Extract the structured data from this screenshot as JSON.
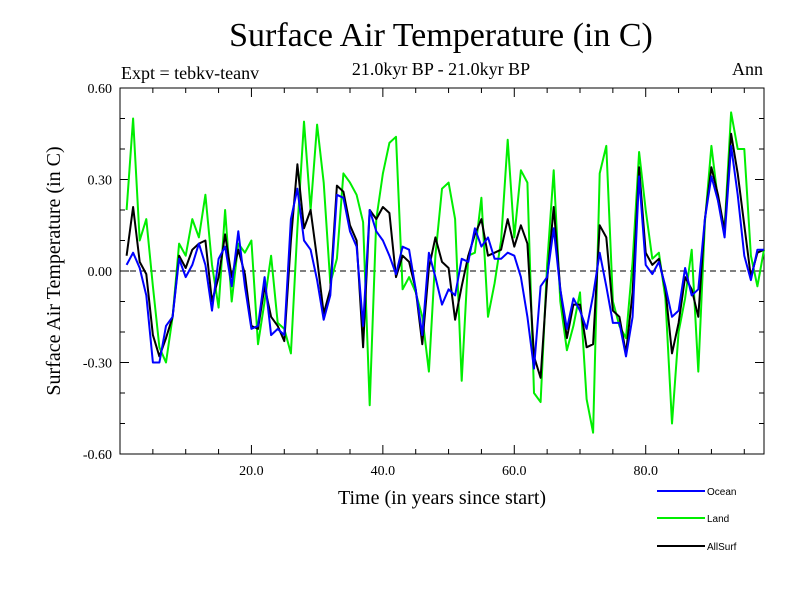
{
  "chart_data": {
    "type": "line",
    "title": "Surface Air Temperature (in C)",
    "subtitle": "21.0kyr BP - 21.0kyr BP",
    "left_label": "Expt = tebkv-teanv",
    "right_label": "Ann",
    "xlabel": "Time (in years since start)",
    "ylabel": "Surface Air Temperature (in C)",
    "xlim": [
      0,
      98
    ],
    "ylim": [
      -0.6,
      0.6
    ],
    "x_ticks": [
      20,
      40,
      60,
      80
    ],
    "x_tick_labels": [
      "20.0",
      "40.0",
      "60.0",
      "80.0"
    ],
    "y_ticks": [
      -0.6,
      -0.3,
      0.0,
      0.3,
      0.6
    ],
    "y_tick_labels": [
      "-0.60",
      "-0.30",
      "0.00",
      "0.30",
      "0.60"
    ],
    "reference_line": 0.0,
    "legend_position": "bottom-right, below plot",
    "series": [
      {
        "name": "Ocean",
        "color": "#0000ff",
        "values": [
          0.02,
          0.06,
          0.01,
          -0.08,
          -0.3,
          -0.3,
          -0.18,
          -0.15,
          0.04,
          -0.02,
          0.02,
          0.09,
          0.02,
          -0.13,
          0.04,
          0.08,
          -0.05,
          0.13,
          -0.05,
          -0.19,
          -0.18,
          -0.02,
          -0.21,
          -0.19,
          -0.21,
          0.17,
          0.27,
          0.1,
          0.07,
          -0.03,
          -0.16,
          -0.08,
          0.25,
          0.24,
          0.13,
          0.08,
          -0.18,
          0.2,
          0.13,
          0.1,
          0.05,
          -0.01,
          0.08,
          0.07,
          -0.06,
          -0.21,
          0.06,
          -0.02,
          -0.11,
          -0.06,
          -0.08,
          0.04,
          0.03,
          0.14,
          0.08,
          0.11,
          0.04,
          0.04,
          0.06,
          0.05,
          -0.02,
          -0.15,
          -0.32,
          -0.05,
          -0.02,
          0.14,
          -0.06,
          -0.19,
          -0.09,
          -0.13,
          -0.19,
          -0.08,
          0.06,
          -0.05,
          -0.17,
          -0.17,
          -0.28,
          -0.15,
          0.31,
          0.02,
          -0.01,
          0.03,
          -0.05,
          -0.15,
          -0.13,
          0.01,
          -0.08,
          -0.06,
          0.17,
          0.31,
          0.23,
          0.11,
          0.41,
          0.25,
          0.05,
          -0.03,
          0.07,
          0.07
        ]
      },
      {
        "name": "Land",
        "color": "#00ee00",
        "values": [
          0.2,
          0.5,
          0.1,
          0.17,
          -0.05,
          -0.25,
          -0.3,
          -0.15,
          0.09,
          0.05,
          0.17,
          0.11,
          0.25,
          0.02,
          -0.12,
          0.2,
          -0.1,
          0.09,
          0.06,
          0.1,
          -0.24,
          -0.1,
          0.05,
          -0.17,
          -0.19,
          -0.27,
          0.14,
          0.49,
          0.2,
          0.48,
          0.29,
          -0.04,
          0.04,
          0.32,
          0.29,
          0.25,
          0.16,
          -0.44,
          0.17,
          0.32,
          0.42,
          0.44,
          -0.06,
          -0.02,
          -0.07,
          -0.15,
          -0.33,
          0.05,
          0.27,
          0.29,
          0.17,
          -0.36,
          0.05,
          0.06,
          0.24,
          -0.15,
          -0.04,
          0.1,
          0.43,
          0.11,
          0.33,
          0.29,
          -0.4,
          -0.43,
          0.02,
          0.33,
          -0.1,
          -0.26,
          -0.18,
          -0.07,
          -0.42,
          -0.53,
          0.32,
          0.41,
          -0.1,
          -0.18,
          -0.22,
          0.03,
          0.39,
          0.2,
          0.04,
          0.06,
          -0.09,
          -0.5,
          -0.2,
          -0.09,
          0.07,
          -0.33,
          0.16,
          0.41,
          0.23,
          0.14,
          0.52,
          0.4,
          0.4,
          0.05,
          -0.05,
          0.07
        ]
      },
      {
        "name": "AllSurf",
        "color": "#000000",
        "values": [
          0.05,
          0.21,
          0.03,
          -0.01,
          -0.21,
          -0.28,
          -0.22,
          -0.15,
          0.05,
          0.01,
          0.07,
          0.09,
          0.1,
          -0.1,
          -0.02,
          0.12,
          -0.02,
          0.07,
          -0.01,
          -0.18,
          -0.19,
          -0.05,
          -0.15,
          -0.18,
          -0.23,
          0.1,
          0.35,
          0.14,
          0.2,
          0.04,
          -0.14,
          -0.06,
          0.28,
          0.26,
          0.15,
          0.1,
          -0.25,
          0.2,
          0.17,
          0.21,
          0.19,
          -0.02,
          0.05,
          0.03,
          -0.06,
          -0.24,
          0.01,
          0.11,
          0.03,
          0.01,
          -0.16,
          -0.05,
          0.05,
          0.12,
          0.17,
          0.05,
          0.06,
          0.07,
          0.17,
          0.08,
          0.15,
          0.09,
          -0.28,
          -0.35,
          -0.03,
          0.21,
          -0.06,
          -0.22,
          -0.11,
          -0.11,
          -0.25,
          -0.24,
          0.15,
          0.11,
          -0.13,
          -0.15,
          -0.27,
          -0.07,
          0.34,
          0.06,
          0.02,
          0.04,
          -0.06,
          -0.27,
          -0.17,
          -0.02,
          -0.06,
          -0.15,
          0.17,
          0.34,
          0.25,
          0.13,
          0.45,
          0.32,
          0.15,
          -0.02,
          0.06,
          0.07
        ]
      }
    ]
  }
}
